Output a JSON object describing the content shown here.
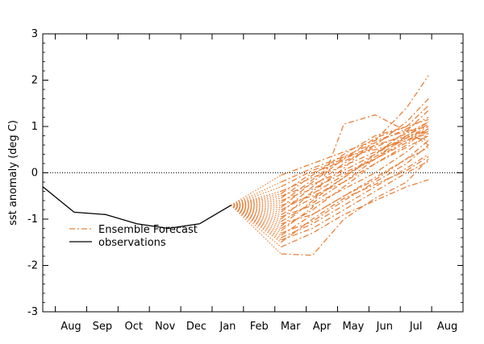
{
  "chart_data": {
    "type": "line",
    "title": "",
    "xlabel": "",
    "ylabel": "sst anomaly (deg C)",
    "ylim": [
      -3,
      3
    ],
    "yticks": [
      -3,
      -2,
      -1,
      0,
      1,
      2,
      3
    ],
    "x_tick_labels": [
      "Aug",
      "Sep",
      "Oct",
      "Nov",
      "Dec",
      "Jan",
      "Feb",
      "Mar",
      "Apr",
      "May",
      "Jun",
      "Jul",
      "Aug"
    ],
    "x_tick_positions": [
      0.5,
      1.5,
      2.5,
      3.5,
      4.5,
      5.5,
      6.5,
      7.5,
      8.5,
      9.5,
      10.5,
      11.5,
      12.5
    ],
    "xlim": [
      -0.4,
      13.0
    ],
    "zero_line": true,
    "legend": {
      "position": "lower-left",
      "entries": [
        "Ensemble Forecast",
        "observations"
      ]
    },
    "colors": {
      "ensemble": "#e8823c",
      "observations": "#000000"
    },
    "observations": {
      "name": "observations",
      "x": [
        -0.4,
        0.6,
        1.6,
        2.6,
        3.6,
        4.6,
        5.6
      ],
      "y": [
        -0.3,
        -0.85,
        -0.9,
        -1.1,
        -1.2,
        -1.1,
        -0.7
      ]
    },
    "ensemble": {
      "name": "Ensemble Forecast",
      "start": {
        "x": 5.6,
        "y": -0.7
      },
      "anchor_x": 7.2,
      "x": [
        7.2,
        8.2,
        9.2,
        10.2,
        11.2,
        11.9
      ],
      "members": [
        [
          -1.75,
          -1.78,
          -1.0,
          -0.55,
          -0.2,
          0.3
        ],
        [
          -1.45,
          -1.2,
          -0.8,
          -0.4,
          0.0,
          0.25
        ],
        [
          -1.4,
          -1.1,
          -0.7,
          -0.3,
          0.1,
          0.4
        ],
        [
          -1.35,
          -0.9,
          -0.5,
          -0.15,
          0.3,
          0.7
        ],
        [
          -1.3,
          -1.05,
          -0.6,
          -0.2,
          0.2,
          0.6
        ],
        [
          -1.25,
          -0.75,
          1.05,
          1.25,
          0.9,
          0.6
        ],
        [
          -1.2,
          -0.8,
          -0.3,
          0.2,
          0.6,
          0.95
        ],
        [
          -1.15,
          -0.6,
          -0.1,
          0.4,
          0.9,
          1.35
        ],
        [
          -1.1,
          -0.9,
          -0.5,
          -0.1,
          0.3,
          0.55
        ],
        [
          -1.05,
          -0.65,
          -0.2,
          0.3,
          0.8,
          1.1
        ],
        [
          -1.0,
          -0.4,
          0.1,
          0.7,
          1.4,
          2.1
        ],
        [
          -0.95,
          -0.7,
          -0.35,
          0.0,
          0.45,
          0.85
        ],
        [
          -0.9,
          -0.55,
          -0.1,
          0.35,
          0.75,
          1.0
        ],
        [
          -0.85,
          -0.3,
          0.2,
          0.6,
          1.1,
          1.6
        ],
        [
          -0.8,
          -0.45,
          -0.05,
          0.3,
          0.7,
          0.95
        ],
        [
          -0.75,
          -0.2,
          0.3,
          0.75,
          1.0,
          1.15
        ],
        [
          -0.7,
          -0.5,
          -0.2,
          0.2,
          0.55,
          0.8
        ],
        [
          -0.65,
          -0.15,
          0.35,
          0.65,
          0.95,
          1.2
        ],
        [
          -0.6,
          -0.35,
          0.0,
          0.3,
          0.65,
          0.9
        ],
        [
          -0.55,
          -0.05,
          0.4,
          0.8,
          1.0,
          1.45
        ],
        [
          -0.5,
          -0.25,
          0.05,
          0.4,
          0.8,
          1.05
        ],
        [
          -0.45,
          0.0,
          0.25,
          0.55,
          0.85,
          1.1
        ],
        [
          -0.4,
          -0.1,
          0.15,
          0.45,
          0.75,
          0.95
        ],
        [
          -0.3,
          0.05,
          0.3,
          0.6,
          0.8,
          0.7
        ],
        [
          -0.2,
          0.1,
          0.35,
          0.5,
          0.7,
          0.85
        ],
        [
          -0.05,
          0.2,
          0.45,
          0.7,
          0.9,
          1.0
        ],
        [
          -1.6,
          -1.3,
          -0.9,
          -0.6,
          -0.3,
          -0.15
        ],
        [
          -1.5,
          -1.0,
          -0.55,
          -0.25,
          0.05,
          0.35
        ]
      ]
    }
  }
}
